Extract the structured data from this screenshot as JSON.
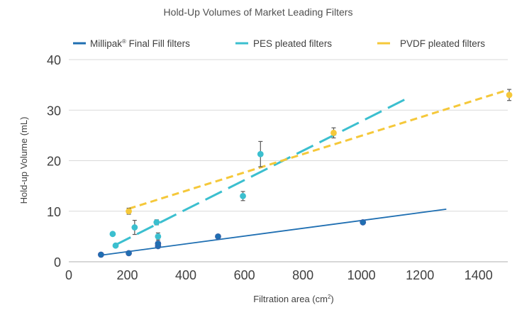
{
  "chart_data": {
    "type": "scatter",
    "title": "Hold-Up Volumes of Market Leading Filters",
    "xlabel": "Filtration area (cm",
    "xlabel_sup": "2",
    "xlabel_end": ")",
    "ylabel": "Hold-up Volume (mL)",
    "xlim": [
      0,
      1500
    ],
    "ylim": [
      0,
      40
    ],
    "x_ticks": [
      "0",
      "200",
      "400",
      "600",
      "800",
      "1000",
      "1200",
      "1400"
    ],
    "y_ticks": [
      "0",
      "10",
      "20",
      "30",
      "40"
    ],
    "grid": true,
    "legend_position": "top",
    "legend": [
      {
        "label": "Millipak",
        "label_sup": "®",
        "label_rest": " Final Fill filters"
      },
      {
        "label": "PES pleated filters",
        "label_sup": "",
        "label_rest": ""
      },
      {
        "label": "PVDF pleated filters",
        "label_sup": "",
        "label_rest": ""
      }
    ],
    "series": [
      {
        "key": "millipak",
        "color": "#1f6fb2",
        "line_style": "solid",
        "trendline": [
          [
            110,
            1.3
          ],
          [
            1290,
            10.4
          ]
        ],
        "points": [
          {
            "x": 110,
            "y": 1.4,
            "err": 0
          },
          {
            "x": 205,
            "y": 1.7,
            "err": 0
          },
          {
            "x": 305,
            "y": 3.1,
            "err": 0
          },
          {
            "x": 305,
            "y": 3.6,
            "err": 0
          },
          {
            "x": 510,
            "y": 5.0,
            "err": 0
          },
          {
            "x": 1005,
            "y": 7.8,
            "err": 0
          }
        ]
      },
      {
        "key": "pes",
        "color": "#3bbfcf",
        "line_style": "long-dash",
        "trendline": [
          [
            155,
            3.2
          ],
          [
            1155,
            32.3
          ]
        ],
        "points": [
          {
            "x": 150,
            "y": 5.5,
            "err": 0
          },
          {
            "x": 160,
            "y": 3.2,
            "err": 0
          },
          {
            "x": 225,
            "y": 6.8,
            "err": 1.4
          },
          {
            "x": 300,
            "y": 7.8,
            "err": 0.5
          },
          {
            "x": 305,
            "y": 5.0,
            "err": 0.7
          },
          {
            "x": 595,
            "y": 13.0,
            "err": 0.9
          },
          {
            "x": 655,
            "y": 21.3,
            "err": 2.5
          }
        ]
      },
      {
        "key": "pvdf",
        "color": "#f5c83a",
        "line_style": "dash",
        "trendline": [
          [
            205,
            10.5
          ],
          [
            1500,
            34.0
          ]
        ],
        "points": [
          {
            "x": 205,
            "y": 10.0,
            "err": 0.6
          },
          {
            "x": 905,
            "y": 25.5,
            "err": 1.0
          },
          {
            "x": 1505,
            "y": 33.0,
            "err": 1.1
          }
        ]
      }
    ]
  }
}
